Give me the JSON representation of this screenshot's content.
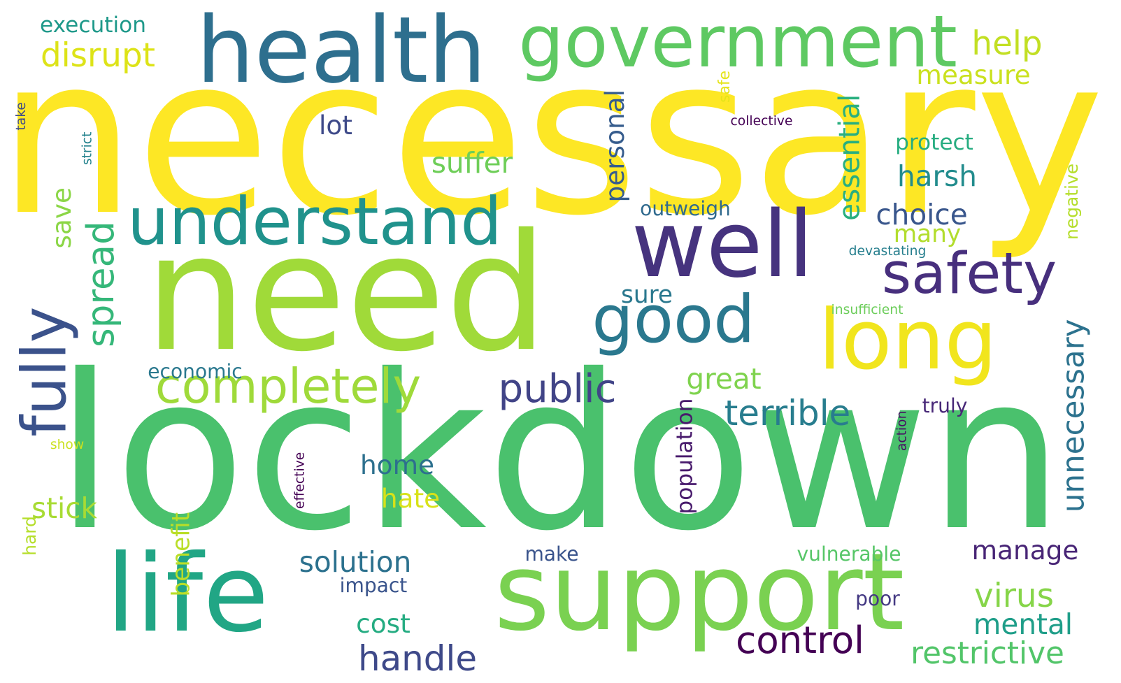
{
  "word_cloud": {
    "words": [
      {
        "text": "necessary",
        "weight": 1.0,
        "color": "#fde725"
      },
      {
        "text": "lockdown",
        "weight": 0.98,
        "color": "#4ac16d"
      },
      {
        "text": "need",
        "weight": 0.74,
        "color": "#a0da39"
      },
      {
        "text": "support",
        "weight": 0.49,
        "color": "#7ad151"
      },
      {
        "text": "life",
        "weight": 0.49,
        "color": "#21a685"
      },
      {
        "text": "health",
        "weight": 0.42,
        "color": "#2e6f8e"
      },
      {
        "text": "well",
        "weight": 0.42,
        "color": "#46337e"
      },
      {
        "text": "long",
        "weight": 0.38,
        "color": "#f1e51d"
      },
      {
        "text": "government",
        "weight": 0.33,
        "color": "#5ec962"
      },
      {
        "text": "understand",
        "weight": 0.3,
        "color": "#20928c"
      },
      {
        "text": "good",
        "weight": 0.3,
        "color": "#2a788e"
      },
      {
        "text": "fully",
        "weight": 0.28,
        "color": "#3b528b"
      },
      {
        "text": "safety",
        "weight": 0.26,
        "color": "#472f7d"
      },
      {
        "text": "completely",
        "weight": 0.22,
        "color": "#9fda3a"
      },
      {
        "text": "public",
        "weight": 0.18,
        "color": "#414487"
      },
      {
        "text": "control",
        "weight": 0.17,
        "color": "#440154"
      },
      {
        "text": "spread",
        "weight": 0.17,
        "color": "#35b779"
      },
      {
        "text": "terrible",
        "weight": 0.16,
        "color": "#287d8e"
      },
      {
        "text": "handle",
        "weight": 0.16,
        "color": "#3e4989"
      },
      {
        "text": "disrupt",
        "weight": 0.15,
        "color": "#dde318"
      },
      {
        "text": "help",
        "weight": 0.15,
        "color": "#c2df23"
      },
      {
        "text": "virus",
        "weight": 0.15,
        "color": "#86d549"
      },
      {
        "text": "unnecessary",
        "weight": 0.14,
        "color": "#2c728e"
      },
      {
        "text": "restrictive",
        "weight": 0.14,
        "color": "#52c569"
      },
      {
        "text": "essential",
        "weight": 0.13,
        "color": "#29af7f"
      },
      {
        "text": "harsh",
        "weight": 0.13,
        "color": "#228c8d"
      },
      {
        "text": "choice",
        "weight": 0.13,
        "color": "#39568c"
      },
      {
        "text": "solution",
        "weight": 0.13,
        "color": "#2c718e"
      },
      {
        "text": "suffer",
        "weight": 0.13,
        "color": "#6ece58"
      },
      {
        "text": "great",
        "weight": 0.13,
        "color": "#7fd34e"
      },
      {
        "text": "mental",
        "weight": 0.13,
        "color": "#1f9e89"
      },
      {
        "text": "stick",
        "weight": 0.13,
        "color": "#a8db34"
      },
      {
        "text": "personal",
        "weight": 0.12,
        "color": "#365c8d"
      },
      {
        "text": "cost",
        "weight": 0.12,
        "color": "#25ac82"
      },
      {
        "text": "manage",
        "weight": 0.12,
        "color": "#482576"
      },
      {
        "text": "measure",
        "weight": 0.12,
        "color": "#cae11f"
      },
      {
        "text": "lot",
        "weight": 0.12,
        "color": "#3e4a89"
      },
      {
        "text": "home",
        "weight": 0.12,
        "color": "#2d708e"
      },
      {
        "text": "hate",
        "weight": 0.12,
        "color": "#d8e219"
      },
      {
        "text": "save",
        "weight": 0.12,
        "color": "#8bd646"
      },
      {
        "text": "many",
        "weight": 0.11,
        "color": "#b2dd2d"
      },
      {
        "text": "sure",
        "weight": 0.11,
        "color": "#2a788e"
      },
      {
        "text": "benefit",
        "weight": 0.11,
        "color": "#bade28"
      },
      {
        "text": "population",
        "weight": 0.1,
        "color": "#481a6c"
      },
      {
        "text": "protect",
        "weight": 0.1,
        "color": "#27ad81"
      },
      {
        "text": "execution",
        "weight": 0.1,
        "color": "#1f998a"
      },
      {
        "text": "economic",
        "weight": 0.09,
        "color": "#2a788e"
      },
      {
        "text": "outweigh",
        "weight": 0.09,
        "color": "#306a8e"
      },
      {
        "text": "vulnerable",
        "weight": 0.09,
        "color": "#56c667"
      },
      {
        "text": "truly",
        "weight": 0.09,
        "color": "#482878"
      },
      {
        "text": "impact",
        "weight": 0.09,
        "color": "#3a548c"
      },
      {
        "text": "make",
        "weight": 0.09,
        "color": "#3a548c"
      },
      {
        "text": "poor",
        "weight": 0.09,
        "color": "#443983"
      },
      {
        "text": "negative",
        "weight": 0.08,
        "color": "#b5de2b"
      },
      {
        "text": "hard",
        "weight": 0.08,
        "color": "#b5de2b"
      },
      {
        "text": "safe",
        "weight": 0.07,
        "color": "#e5e419"
      },
      {
        "text": "collective",
        "weight": 0.06,
        "color": "#440154"
      },
      {
        "text": "devastating",
        "weight": 0.06,
        "color": "#277f8e"
      },
      {
        "text": "insufficient",
        "weight": 0.06,
        "color": "#6ccd5a"
      },
      {
        "text": "strict",
        "weight": 0.06,
        "color": "#25838e"
      },
      {
        "text": "take",
        "weight": 0.06,
        "color": "#3e4a89"
      },
      {
        "text": "show",
        "weight": 0.06,
        "color": "#cae11f"
      },
      {
        "text": "effective",
        "weight": 0.06,
        "color": "#440154"
      },
      {
        "text": "action",
        "weight": 0.06,
        "color": "#471063"
      }
    ]
  }
}
